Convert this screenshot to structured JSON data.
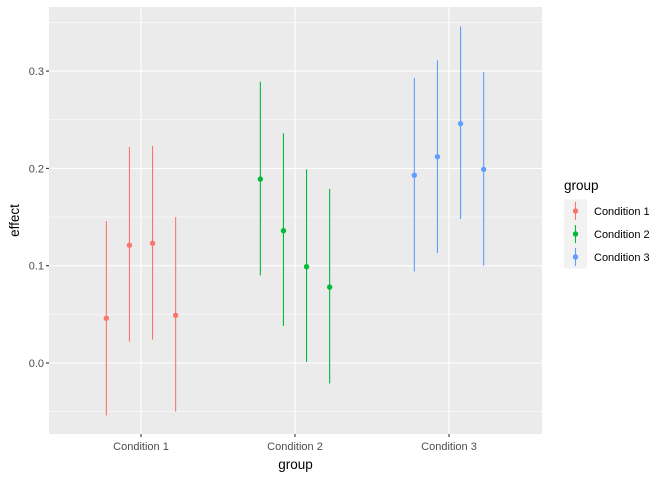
{
  "chart_data": {
    "type": "pointrange",
    "title": "",
    "xlabel": "group",
    "ylabel": "effect",
    "categories": [
      "Condition 1",
      "Condition 2",
      "Condition 3"
    ],
    "ylim": [
      -0.073,
      0.367
    ],
    "yticks": [
      0.0,
      0.1,
      0.2,
      0.3
    ],
    "ytick_labels": [
      "0.0",
      "0.1",
      "0.2",
      "0.3"
    ],
    "grid": true,
    "legend_position": "right",
    "legend_title": "group",
    "series": [
      {
        "name": "Condition 1",
        "color": "#F8766D",
        "points": [
          {
            "dodge": -0.225,
            "y": 0.046,
            "ymin": -0.054,
            "ymax": 0.146
          },
          {
            "dodge": -0.075,
            "y": 0.121,
            "ymin": 0.022,
            "ymax": 0.222
          },
          {
            "dodge": 0.075,
            "y": 0.123,
            "ymin": 0.024,
            "ymax": 0.223
          },
          {
            "dodge": 0.225,
            "y": 0.049,
            "ymin": -0.05,
            "ymax": 0.15
          }
        ]
      },
      {
        "name": "Condition 2",
        "color": "#00BA38",
        "points": [
          {
            "dodge": -0.225,
            "y": 0.189,
            "ymin": 0.09,
            "ymax": 0.289
          },
          {
            "dodge": -0.075,
            "y": 0.136,
            "ymin": 0.038,
            "ymax": 0.236
          },
          {
            "dodge": 0.075,
            "y": 0.099,
            "ymin": 0.001,
            "ymax": 0.199
          },
          {
            "dodge": 0.225,
            "y": 0.078,
            "ymin": -0.021,
            "ymax": 0.179
          }
        ]
      },
      {
        "name": "Condition 3",
        "color": "#619CFF",
        "points": [
          {
            "dodge": -0.225,
            "y": 0.193,
            "ymin": 0.094,
            "ymax": 0.293
          },
          {
            "dodge": -0.075,
            "y": 0.212,
            "ymin": 0.113,
            "ymax": 0.311
          },
          {
            "dodge": 0.075,
            "y": 0.246,
            "ymin": 0.148,
            "ymax": 0.346
          },
          {
            "dodge": 0.225,
            "y": 0.199,
            "ymin": 0.1,
            "ymax": 0.299
          }
        ]
      }
    ]
  },
  "legend": {
    "title": "group",
    "items": [
      {
        "label": "Condition 1",
        "color": "#F8766D"
      },
      {
        "label": "Condition 2",
        "color": "#00BA38"
      },
      {
        "label": "Condition 3",
        "color": "#619CFF"
      }
    ]
  },
  "axes": {
    "x_title": "group",
    "y_title": "effect"
  }
}
